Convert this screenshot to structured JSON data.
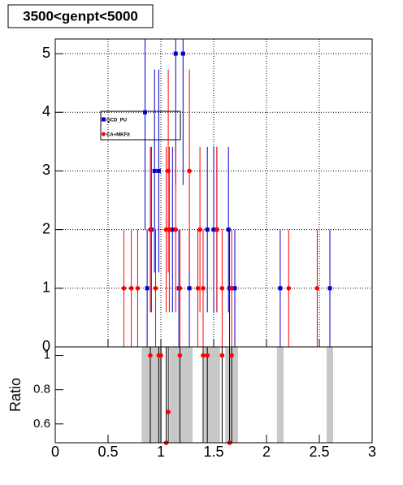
{
  "chart_data": [
    {
      "type": "scatter",
      "title": "3500<genpt<5000",
      "xlim": [
        0,
        3
      ],
      "ylim": [
        0,
        5.25
      ],
      "yticks": [
        0,
        1,
        2,
        3,
        4,
        5
      ],
      "grid": true,
      "legend": "upper left",
      "series": [
        {
          "name": "QCD_PU",
          "color": "#0000cc",
          "marker": "square",
          "x": [
            0.87,
            0.85,
            0.91,
            0.94,
            0.98,
            1.11,
            1.14,
            1.17,
            1.21,
            1.27,
            1.44,
            1.5,
            1.53,
            1.64,
            1.65,
            1.7,
            2.13,
            2.6
          ],
          "values": [
            1,
            4,
            2,
            3,
            3,
            2,
            5,
            1,
            5,
            1,
            2,
            2,
            2,
            2,
            1,
            1,
            1,
            1
          ],
          "errors": [
            1,
            2,
            1.41,
            1.73,
            1.73,
            1.41,
            2.24,
            1,
            2.24,
            1,
            1.41,
            1.41,
            1.41,
            1.41,
            1,
            1,
            1,
            1
          ]
        },
        {
          "name": "CA+MKFit",
          "color": "#ff0000",
          "marker": "circle",
          "x": [
            0.65,
            0.72,
            0.78,
            0.9,
            0.95,
            1.05,
            1.07,
            1.08,
            1.14,
            1.18,
            1.27,
            1.35,
            1.37,
            1.4,
            1.53,
            1.58,
            1.67,
            2.21,
            2.48
          ],
          "values": [
            1,
            1,
            1,
            2,
            1,
            2,
            3,
            2,
            2,
            1,
            3,
            1,
            2,
            1,
            2,
            1,
            1,
            1,
            1
          ],
          "errors": [
            1,
            1,
            1,
            1.41,
            1,
            1.41,
            1.73,
            1.41,
            1.41,
            1,
            1.73,
            1,
            1.41,
            1,
            1.41,
            1,
            1,
            1,
            1
          ]
        }
      ]
    },
    {
      "type": "ratio",
      "y_label": "Ratio",
      "xlim": [
        0,
        3
      ],
      "ylim": [
        0.49,
        1.05
      ],
      "xticks": [
        0,
        0.5,
        1,
        1.5,
        2,
        2.5,
        3
      ],
      "yticks": [
        0.6,
        0.8,
        1
      ],
      "bands": [
        0.85,
        0.87,
        0.91,
        0.94,
        0.98,
        1.11,
        1.14,
        1.17,
        1.21,
        1.27,
        1.44,
        1.5,
        1.53,
        1.64,
        1.65,
        1.7,
        2.13,
        2.6
      ],
      "x": [
        0.9,
        0.98,
        1.0,
        1.05,
        1.07,
        1.18,
        1.4,
        1.44,
        1.58,
        1.65,
        1.67
      ],
      "values": [
        1,
        1,
        1,
        0.49,
        0.67,
        1,
        1,
        1,
        1,
        0.49,
        1
      ],
      "color": "#ff0000"
    }
  ]
}
